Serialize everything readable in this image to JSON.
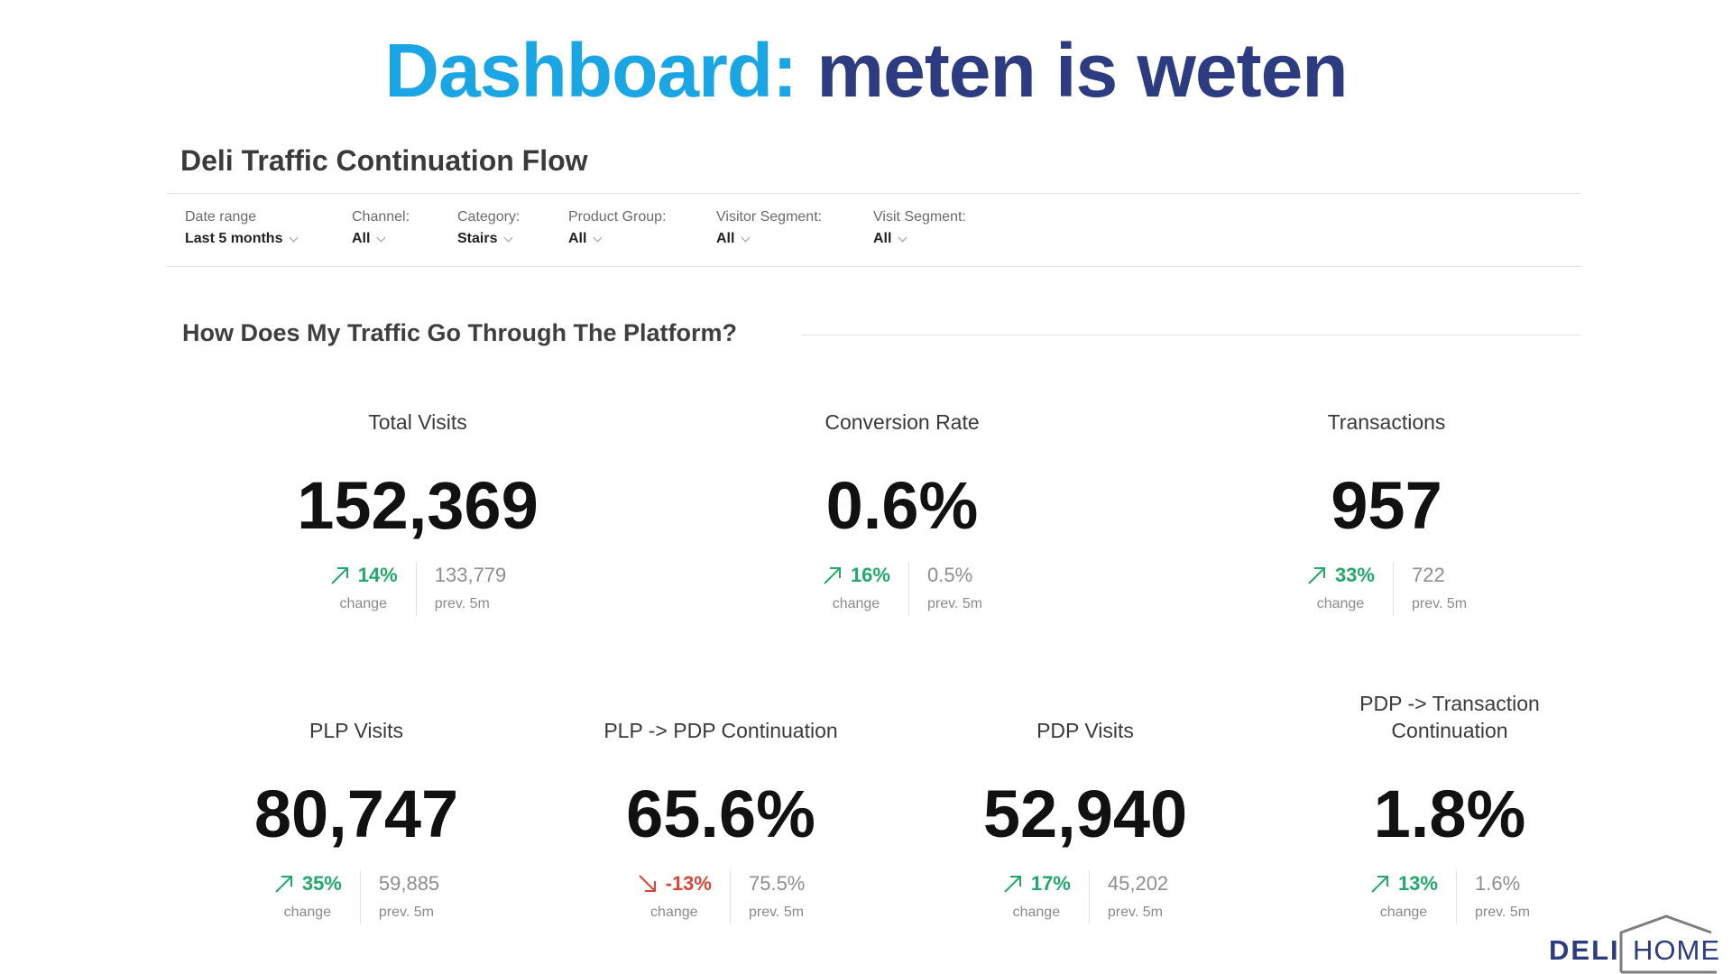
{
  "slide": {
    "title_accent": "Dashboard:",
    "title_main": "meten is weten"
  },
  "dashboard": {
    "title": "Deli Traffic Continuation Flow",
    "filters": [
      {
        "label": "Date range",
        "value": "Last 5 months"
      },
      {
        "label": "Channel:",
        "value": "All"
      },
      {
        "label": "Category:",
        "value": "Stairs"
      },
      {
        "label": "Product Group:",
        "value": "All"
      },
      {
        "label": "Visitor Segment:",
        "value": "All"
      },
      {
        "label": "Visit Segment:",
        "value": "All"
      }
    ],
    "section_title": "How Does My Traffic Go Through The Platform?"
  },
  "metrics": [
    {
      "label": "Total Visits",
      "value": "152,369",
      "change": "14%",
      "direction": "up",
      "change_label": "change",
      "prev": "133,779",
      "prev_label": "prev. 5m"
    },
    {
      "label": "Conversion Rate",
      "value": "0.6%",
      "change": "16%",
      "direction": "up",
      "change_label": "change",
      "prev": "0.5%",
      "prev_label": "prev. 5m"
    },
    {
      "label": "Transactions",
      "value": "957",
      "change": "33%",
      "direction": "up",
      "change_label": "change",
      "prev": "722",
      "prev_label": "prev. 5m"
    },
    {
      "label": "PLP Visits",
      "value": "80,747",
      "change": "35%",
      "direction": "up",
      "change_label": "change",
      "prev": "59,885",
      "prev_label": "prev. 5m"
    },
    {
      "label": "PLP -> PDP Continuation",
      "value": "65.6%",
      "change": "-13%",
      "direction": "down",
      "change_label": "change",
      "prev": "75.5%",
      "prev_label": "prev. 5m"
    },
    {
      "label": "PDP Visits",
      "value": "52,940",
      "change": "17%",
      "direction": "up",
      "change_label": "change",
      "prev": "45,202",
      "prev_label": "prev. 5m"
    },
    {
      "label": "PDP -> Transaction Continuation",
      "value": "1.8%",
      "change": "13%",
      "direction": "up",
      "change_label": "change",
      "prev": "1.6%",
      "prev_label": "prev. 5m"
    }
  ],
  "colors": {
    "accent": "#1aa6e4",
    "brand": "#2d3b80",
    "up": "#22a86b",
    "down": "#d9473a"
  },
  "logo": {
    "left": "DELI",
    "right": "HOME"
  }
}
